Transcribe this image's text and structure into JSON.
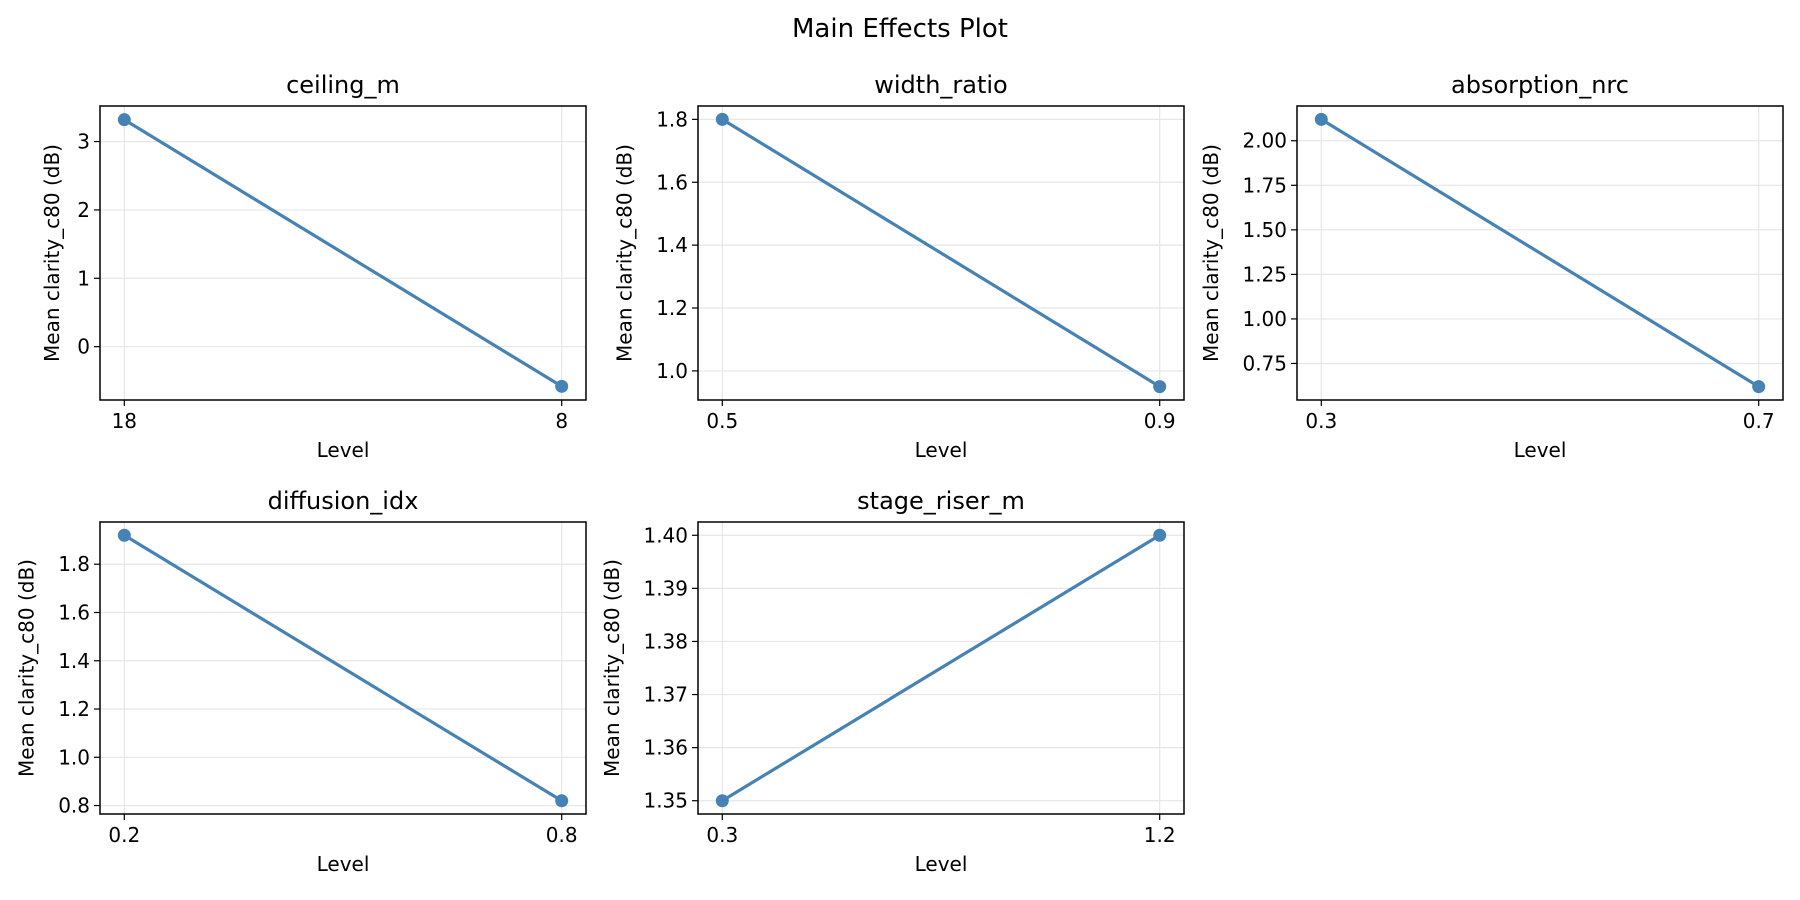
{
  "figure": {
    "title": "Main Effects Plot"
  },
  "style": {
    "line_color": "#4682b4",
    "grid_color": "#e6e6e6",
    "axis_color": "#000000",
    "grid": true
  },
  "chart_data": [
    {
      "type": "line",
      "title": "ceiling_m",
      "xlabel": "Level",
      "ylabel": "Mean clarity_c80 (dB)",
      "categories": [
        "18",
        "8"
      ],
      "series": [
        {
          "values": [
            3.32,
            -0.58
          ]
        }
      ],
      "ylim": [
        -0.78,
        3.52
      ],
      "yticks": [
        0,
        1,
        2,
        3
      ],
      "ytick_labels": [
        "0",
        "1",
        "2",
        "3"
      ]
    },
    {
      "type": "line",
      "title": "width_ratio",
      "xlabel": "Level",
      "ylabel": "Mean clarity_c80 (dB)",
      "categories": [
        "0.5",
        "0.9"
      ],
      "series": [
        {
          "values": [
            1.8,
            0.95
          ]
        }
      ],
      "ylim": [
        0.9075,
        1.8425
      ],
      "yticks": [
        1.0,
        1.2,
        1.4,
        1.6,
        1.8
      ],
      "ytick_labels": [
        "1.0",
        "1.2",
        "1.4",
        "1.6",
        "1.8"
      ]
    },
    {
      "type": "line",
      "title": "absorption_nrc",
      "xlabel": "Level",
      "ylabel": "Mean clarity_c80 (dB)",
      "categories": [
        "0.3",
        "0.7"
      ],
      "series": [
        {
          "values": [
            2.12,
            0.62
          ]
        }
      ],
      "ylim": [
        0.545,
        2.195
      ],
      "yticks": [
        0.75,
        1.0,
        1.25,
        1.5,
        1.75,
        2.0
      ],
      "ytick_labels": [
        "0.75",
        "1.00",
        "1.25",
        "1.50",
        "1.75",
        "2.00"
      ]
    },
    {
      "type": "line",
      "title": "diffusion_idx",
      "xlabel": "Level",
      "ylabel": "Mean clarity_c80 (dB)",
      "categories": [
        "0.2",
        "0.8"
      ],
      "series": [
        {
          "values": [
            1.92,
            0.82
          ]
        }
      ],
      "ylim": [
        0.765,
        1.975
      ],
      "yticks": [
        0.8,
        1.0,
        1.2,
        1.4,
        1.6,
        1.8
      ],
      "ytick_labels": [
        "0.8",
        "1.0",
        "1.2",
        "1.4",
        "1.6",
        "1.8"
      ]
    },
    {
      "type": "line",
      "title": "stage_riser_m",
      "xlabel": "Level",
      "ylabel": "Mean clarity_c80 (dB)",
      "categories": [
        "0.3",
        "1.2"
      ],
      "series": [
        {
          "values": [
            1.35,
            1.4
          ]
        }
      ],
      "ylim": [
        1.3475,
        1.4025
      ],
      "yticks": [
        1.35,
        1.36,
        1.37,
        1.38,
        1.39,
        1.4
      ],
      "ytick_labels": [
        "1.35",
        "1.36",
        "1.37",
        "1.38",
        "1.39",
        "1.40"
      ]
    }
  ]
}
